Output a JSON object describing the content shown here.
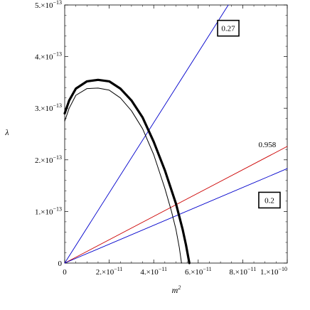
{
  "chart_data": {
    "type": "line",
    "title": "",
    "xlabel": "m",
    "xlabel_sup": "2",
    "ylabel": "λ",
    "xlim": [
      0,
      1e-10
    ],
    "ylim": [
      0,
      5e-13
    ],
    "x_ticks": [
      {
        "value": 0,
        "label": "0"
      },
      {
        "value": 2e-11,
        "label": "2.×10",
        "exp": "−11"
      },
      {
        "value": 4e-11,
        "label": "4.×10",
        "exp": "−11"
      },
      {
        "value": 6e-11,
        "label": "6.×10",
        "exp": "−11"
      },
      {
        "value": 8e-11,
        "label": "8.×10",
        "exp": "−11"
      },
      {
        "value": 1e-10,
        "label": "1.×10",
        "exp": "−10"
      }
    ],
    "y_ticks": [
      {
        "value": 0,
        "label": "0"
      },
      {
        "value": 1e-13,
        "label": "1.×10",
        "exp": "−13"
      },
      {
        "value": 2e-13,
        "label": "2.×10",
        "exp": "−13"
      },
      {
        "value": 3e-13,
        "label": "3.×10",
        "exp": "−13"
      },
      {
        "value": 4e-13,
        "label": "4.×10",
        "exp": "−13"
      },
      {
        "value": 5e-13,
        "label": "5.×10",
        "exp": "−13"
      }
    ],
    "grid": false,
    "series": [
      {
        "label": "0.27",
        "color": "#0000cc",
        "width": 0.9,
        "x": [
          0,
          7.35e-11
        ],
        "y": [
          0,
          5e-13
        ]
      },
      {
        "label": "0.958",
        "color": "#cc0000",
        "width": 0.9,
        "x": [
          0,
          1e-10
        ],
        "y": [
          0,
          2.26e-13
        ]
      },
      {
        "label": "0.2",
        "color": "#0000cc",
        "width": 0.9,
        "x": [
          0,
          1e-10
        ],
        "y": [
          0,
          1.83e-13
        ]
      },
      {
        "color": "#000000",
        "width": 3.2,
        "x": [
          0,
          2e-12,
          5e-12,
          1e-11,
          1.5e-11,
          2e-11,
          2.5e-11,
          3e-11,
          3.5e-11,
          4e-11,
          4.5e-11,
          5e-11,
          5.3e-11,
          5.45e-11,
          5.55e-11,
          5.6e-11
        ],
        "y": [
          2.9e-13,
          3.15e-13,
          3.38e-13,
          3.52e-13,
          3.55e-13,
          3.52e-13,
          3.38e-13,
          3.15e-13,
          2.82e-13,
          2.35e-13,
          1.8e-13,
          1.15e-13,
          6.5e-14,
          3.5e-14,
          1.2e-14,
          0
        ]
      },
      {
        "color": "#000000",
        "width": 1.0,
        "x": [
          0,
          2e-12,
          5e-12,
          1e-11,
          1.5e-11,
          2e-11,
          2.5e-11,
          3e-11,
          3.5e-11,
          4e-11,
          4.5e-11,
          4.8e-11,
          5e-11,
          5.15e-11,
          5.25e-11
        ],
        "y": [
          2.75e-13,
          3e-13,
          3.25e-13,
          3.38e-13,
          3.39e-13,
          3.35e-13,
          3.2e-13,
          2.95e-13,
          2.6e-13,
          2.1e-13,
          1.45e-13,
          1e-13,
          6.5e-14,
          3e-14,
          0
        ]
      }
    ],
    "annotations": [
      {
        "text": "0.27",
        "boxed": true,
        "x": 7.35e-11,
        "y": 4.55e-13
      },
      {
        "text": "0.958",
        "boxed": false,
        "x": 9.1e-11,
        "y": 2.3e-13
      },
      {
        "text": "0.2",
        "boxed": true,
        "x": 9.2e-11,
        "y": 1.22e-13
      }
    ]
  }
}
